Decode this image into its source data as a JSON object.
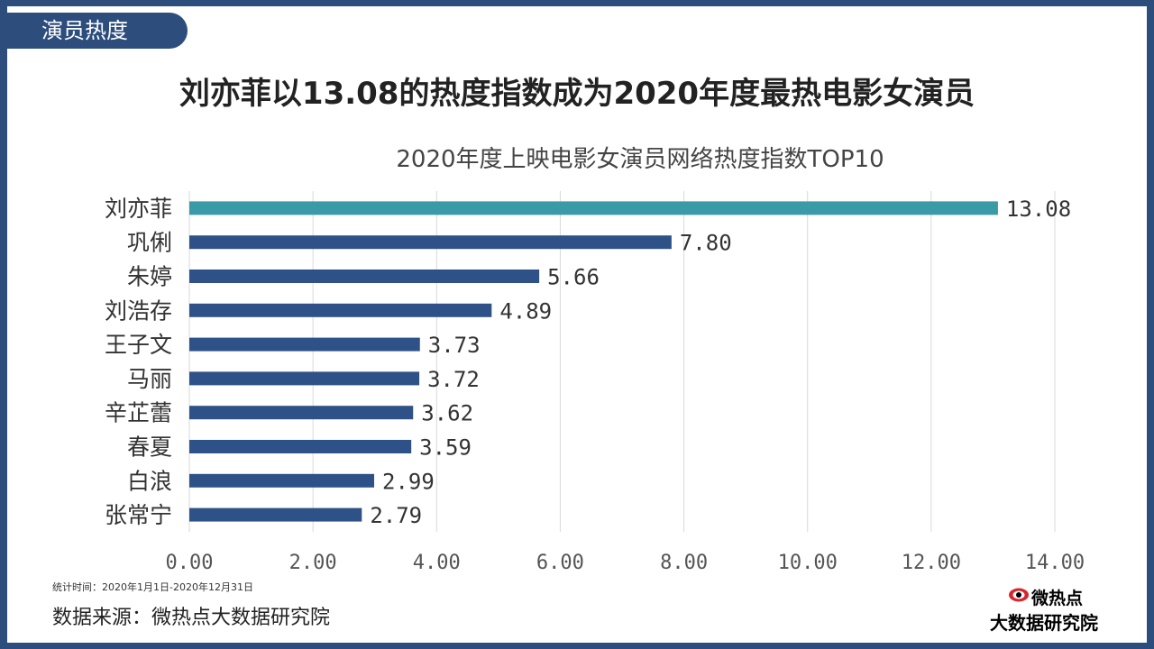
{
  "section_tag": "演员热度",
  "headline": "刘亦菲以13.08的热度指数成为2020年度最热电影女演员",
  "footer": {
    "note": "统计时间：2020年1月1日-2020年12月31日",
    "source": "数据来源：微热点大数据研究院"
  },
  "logo": {
    "icon": "eye-logo-icon",
    "brand": "微热点",
    "org": "大数据研究院"
  },
  "colors": {
    "frame": "#2d4d7d",
    "bar": "#2e5287",
    "bar_highlight": "#3a9aa5",
    "grid": "#d9d9d9"
  },
  "chart_data": {
    "type": "bar",
    "orientation": "horizontal",
    "title": "2020年度上映电影女演员网络热度指数TOP10",
    "categories": [
      "刘亦菲",
      "巩俐",
      "朱婷",
      "刘浩存",
      "王子文",
      "马丽",
      "辛芷蕾",
      "春夏",
      "白浪",
      "张常宁"
    ],
    "values": [
      13.08,
      7.8,
      5.66,
      4.89,
      3.73,
      3.72,
      3.62,
      3.59,
      2.99,
      2.79
    ],
    "value_labels": [
      "13.08",
      "7.80",
      "5.66",
      "4.89",
      "3.73",
      "3.72",
      "3.62",
      "3.59",
      "2.99",
      "2.79"
    ],
    "xlim": [
      0,
      14
    ],
    "xticks": [
      0,
      2,
      4,
      6,
      8,
      10,
      12,
      14
    ],
    "xtick_labels": [
      "0.00",
      "2.00",
      "4.00",
      "6.00",
      "8.00",
      "10.00",
      "12.00",
      "14.00"
    ],
    "highlight_index": 0,
    "grid": true,
    "legend": "none"
  }
}
